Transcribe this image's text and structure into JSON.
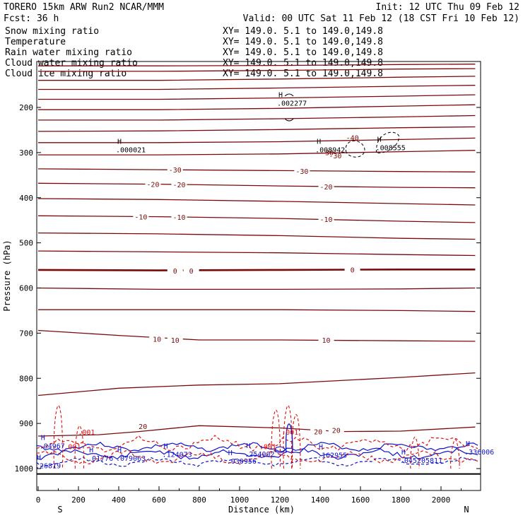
{
  "header": {
    "line1_left": "TORERO  15km ARW   Run2    NCAR/MMM",
    "line1_right": "Init: 12 UTC Thu 09 Feb 12",
    "line2_left": "Fcst:   36 h",
    "line2_right": "Valid: 00 UTC Sat 11 Feb 12 (18 CST Fri 10 Feb 12)"
  },
  "fields": [
    {
      "name": "Snow mixing ratio",
      "xy": "XY= 149.0.  5.1 to 149.0,149.8",
      "color": "#000000",
      "name_color": "#000000"
    },
    {
      "name": "Temperature",
      "xy": "XY= 149.0.  5.1 to 149.0,149.8",
      "color": "#cc0000",
      "name_color": "#cc0000"
    },
    {
      "name": "Rain water mixing ratio",
      "xy": "XY= 149.0.  5.1 to 149.0,149.8",
      "color": "#cc0000",
      "name_color": "#cc0000"
    },
    {
      "name": "Cloud water mixing ratio",
      "xy": "XY= 149.0.  5.1 to 149.0,149.8",
      "color": "#0000cc",
      "name_color": "#0000cc"
    },
    {
      "name": "Cloud ice mixing ratio",
      "xy": "XY= 149.0.  5.1 to 149.0,149.8",
      "color": "#000000",
      "name_color": "#000000"
    }
  ],
  "colors": {
    "temperature": "#7a0a0a",
    "rain": "#dd1111",
    "cloud_water": "#1111cc",
    "ice": "#000000",
    "surface": "#000000"
  },
  "chart_data": {
    "type": "contour",
    "xlabel": "Distance (km)",
    "ylabel": "Pressure (hPa)",
    "xlim": [
      0,
      2170
    ],
    "ylim": [
      1050,
      100
    ],
    "xticks": [
      0,
      200,
      400,
      600,
      800,
      1000,
      1200,
      1400,
      1600,
      1800,
      2000
    ],
    "yticks": [
      200,
      300,
      400,
      500,
      600,
      700,
      800,
      900,
      1000
    ],
    "x_end_labels": {
      "left": "S",
      "right": "N"
    },
    "temperature_isotherms": [
      {
        "p": [
          [
            0,
            108
          ],
          [
            600,
            108
          ],
          [
            1200,
            107
          ],
          [
            1800,
            105
          ],
          [
            2170,
            104
          ]
        ]
      },
      {
        "p": [
          [
            0,
            120
          ],
          [
            600,
            120
          ],
          [
            1200,
            118
          ],
          [
            1800,
            115
          ],
          [
            2170,
            114
          ]
        ]
      },
      {
        "p": [
          [
            0,
            140
          ],
          [
            600,
            140
          ],
          [
            1200,
            137
          ],
          [
            1800,
            133
          ],
          [
            2170,
            131
          ]
        ]
      },
      {
        "p": [
          [
            0,
            160
          ],
          [
            600,
            160
          ],
          [
            1200,
            157
          ],
          [
            1800,
            153
          ],
          [
            2170,
            151
          ]
        ]
      },
      {
        "p": [
          [
            0,
            182
          ],
          [
            600,
            182
          ],
          [
            1200,
            179
          ],
          [
            1800,
            175
          ],
          [
            2170,
            172
          ]
        ]
      },
      {
        "p": [
          [
            0,
            205
          ],
          [
            600,
            205
          ],
          [
            1200,
            202
          ],
          [
            1800,
            197
          ],
          [
            2170,
            194
          ]
        ]
      },
      {
        "p": [
          [
            0,
            228
          ],
          [
            600,
            228
          ],
          [
            1200,
            225
          ],
          [
            1800,
            221
          ],
          [
            2170,
            218
          ]
        ]
      },
      {
        "p": [
          [
            0,
            253
          ],
          [
            600,
            252
          ],
          [
            1200,
            249
          ],
          [
            1800,
            245
          ],
          [
            2170,
            243
          ]
        ]
      },
      {
        "p": [
          [
            0,
            278
          ],
          [
            600,
            278
          ],
          [
            1200,
            276
          ],
          [
            1800,
            271
          ],
          [
            2170,
            268
          ]
        ]
      },
      {
        "p": [
          [
            0,
            305
          ],
          [
            600,
            305
          ],
          [
            1200,
            303
          ],
          [
            1800,
            298
          ],
          [
            2170,
            295
          ]
        ]
      },
      {
        "p": [
          [
            0,
            336
          ],
          [
            600,
            338
          ],
          [
            1200,
            340
          ],
          [
            1800,
            342
          ],
          [
            2170,
            343
          ]
        ],
        "label": "-30",
        "at": [
          [
            680,
            338
          ],
          [
            1310,
            341
          ]
        ]
      },
      {
        "p": [
          [
            0,
            368
          ],
          [
            600,
            370
          ],
          [
            1200,
            374
          ],
          [
            1800,
            377
          ],
          [
            2170,
            378
          ]
        ],
        "label": "-20",
        "at": [
          [
            570,
            370
          ],
          [
            700,
            371
          ],
          [
            1430,
            375
          ]
        ]
      },
      {
        "p": [
          [
            0,
            402
          ],
          [
            600,
            404
          ],
          [
            1200,
            408
          ],
          [
            1800,
            413
          ],
          [
            2170,
            416
          ]
        ]
      },
      {
        "p": [
          [
            0,
            440
          ],
          [
            600,
            442
          ],
          [
            1200,
            446
          ],
          [
            1800,
            452
          ],
          [
            2170,
            455
          ]
        ],
        "label": "-10",
        "at": [
          [
            510,
            442
          ],
          [
            700,
            443
          ],
          [
            1430,
            447
          ]
        ]
      },
      {
        "p": [
          [
            0,
            478
          ],
          [
            600,
            480
          ],
          [
            1200,
            484
          ],
          [
            1800,
            490
          ],
          [
            2170,
            492
          ]
        ]
      },
      {
        "p": [
          [
            0,
            518
          ],
          [
            600,
            520
          ],
          [
            1200,
            522
          ],
          [
            1800,
            526
          ],
          [
            2170,
            528
          ]
        ]
      },
      {
        "p": [
          [
            0,
            560
          ],
          [
            600,
            561
          ],
          [
            1200,
            560
          ],
          [
            1800,
            559
          ],
          [
            2170,
            559
          ]
        ],
        "label": "0",
        "at": [
          [
            680,
            562
          ],
          [
            760,
            562
          ],
          [
            1560,
            559
          ]
        ],
        "bold": true
      },
      {
        "p": [
          [
            0,
            600
          ],
          [
            600,
            603
          ],
          [
            1200,
            603
          ],
          [
            1800,
            602
          ],
          [
            2170,
            600
          ]
        ]
      },
      {
        "p": [
          [
            0,
            648
          ],
          [
            600,
            648
          ],
          [
            1200,
            648
          ],
          [
            1800,
            650
          ],
          [
            2170,
            652
          ]
        ]
      },
      {
        "p": [
          [
            0,
            694
          ],
          [
            400,
            705
          ],
          [
            800,
            715
          ],
          [
            1200,
            715
          ],
          [
            1800,
            717
          ],
          [
            2170,
            718
          ]
        ],
        "label": "10",
        "at": [
          [
            590,
            713
          ],
          [
            680,
            715
          ],
          [
            1430,
            715
          ]
        ]
      },
      {
        "p": [
          [
            0,
            838
          ],
          [
            400,
            822
          ],
          [
            800,
            815
          ],
          [
            1200,
            812
          ],
          [
            1800,
            798
          ],
          [
            2170,
            788
          ]
        ]
      },
      {
        "p": [
          [
            0,
            928
          ],
          [
            300,
            925
          ],
          [
            500,
            918
          ],
          [
            800,
            905
          ],
          [
            1200,
            910
          ],
          [
            1500,
            918
          ],
          [
            1800,
            917
          ],
          [
            2170,
            908
          ]
        ],
        "label": "20",
        "at": [
          [
            520,
            906
          ],
          [
            1390,
            918
          ],
          [
            1480,
            915
          ]
        ]
      }
    ],
    "h_labels": [
      {
        "x": 400,
        "p": 290,
        "value": ".000021"
      },
      {
        "x": 1200,
        "p": 187,
        "value": ".002277"
      },
      {
        "x": 1390,
        "p": 290,
        "value": ".008942"
      },
      {
        "x": 1690,
        "p": 285,
        "value": ".008555"
      },
      {
        "x": 20,
        "p": 946,
        "value": ".04967"
      },
      {
        "x": 260,
        "p": 973,
        "value": ".01776"
      },
      {
        "x": 400,
        "p": 973,
        "value": ".079063"
      },
      {
        "x": 630,
        "p": 965,
        "value": ".124073"
      },
      {
        "x": 950,
        "p": 980,
        "value": ".030956"
      },
      {
        "x": 1040,
        "p": 964,
        "value": ".254002"
      },
      {
        "x": 1400,
        "p": 966,
        "value": ".162955"
      },
      {
        "x": 1810,
        "p": 978,
        "value": ".045205811"
      },
      {
        "x": 2130,
        "p": 959,
        "value": ".336006"
      },
      {
        "x": 0,
        "p": 990,
        "value": ".26819"
      }
    ],
    "ice_labels": [
      {
        "x": 1560,
        "p": 273,
        "value": "-40"
      },
      {
        "x": 1435,
        "p": 306,
        "value": "-30"
      },
      {
        "x": 1475,
        "p": 313,
        "value": "-30"
      }
    ],
    "rain_labels": [
      {
        "x": 240,
        "p": 925,
        "value": ".001"
      },
      {
        "x": 170,
        "p": 957,
        "value": ".001"
      },
      {
        "x": 1140,
        "p": 957,
        "value": ".001"
      },
      {
        "x": 1250,
        "p": 925,
        "value": ".001"
      }
    ]
  }
}
